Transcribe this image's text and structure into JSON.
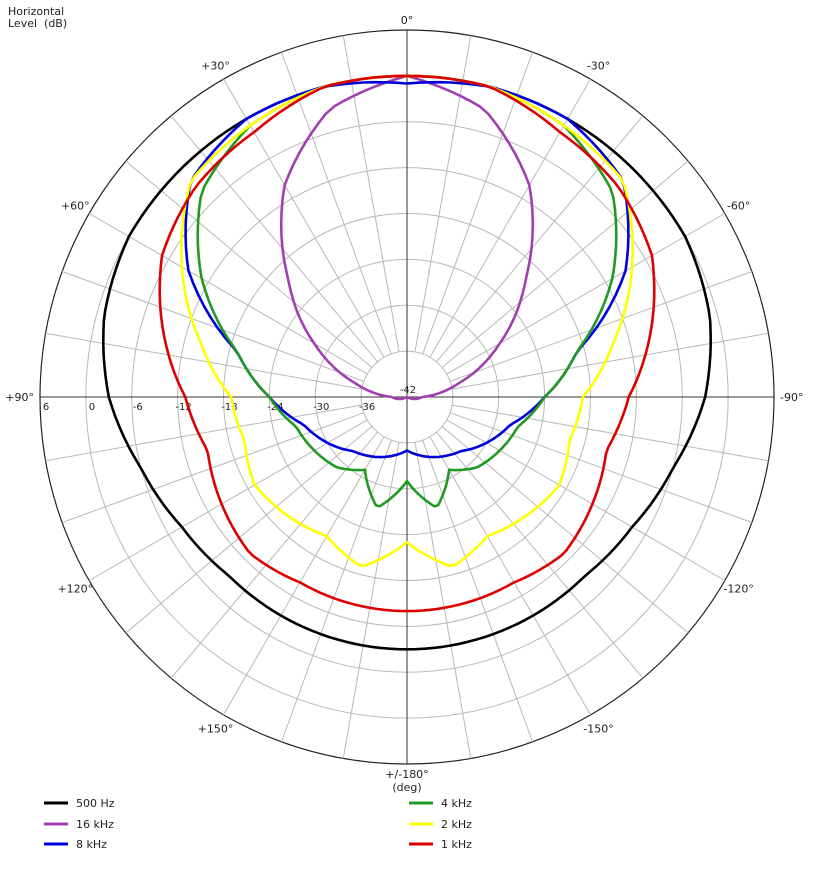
{
  "chart_data": {
    "type": "polar",
    "ylabel": "Horizontal\nLevel  (dB)",
    "ylabel_line1": "Horizontal",
    "ylabel_line2": "Level  (dB)",
    "xlabel": "(deg)",
    "r_range": [
      -42,
      6
    ],
    "r_ticks": [
      -42,
      -36,
      -30,
      -24,
      -18,
      -12,
      -6,
      0,
      6
    ],
    "r_tick_labels": [
      "-42",
      "-36",
      "-30",
      "-24",
      "-18",
      "-12",
      "-6",
      "0",
      "6"
    ],
    "angle_grid_step_deg": 10,
    "angle_labels": [
      {
        "angle": 0,
        "text": "0°"
      },
      {
        "angle": -30,
        "text": "-30°"
      },
      {
        "angle": -60,
        "text": "-60°"
      },
      {
        "angle": -90,
        "text": "-90°"
      },
      {
        "angle": -120,
        "text": "-120°"
      },
      {
        "angle": -150,
        "text": "-150°"
      },
      {
        "angle": 180,
        "text": "+/-180°"
      },
      {
        "angle": 150,
        "text": "+150°"
      },
      {
        "angle": 120,
        "text": "+120°"
      },
      {
        "angle": 90,
        "text": "+90°"
      },
      {
        "angle": 60,
        "text": "+60°"
      },
      {
        "angle": 30,
        "text": "+30°"
      }
    ],
    "grid": true,
    "legend_position": "bottom",
    "angles_deg": [
      0,
      15,
      30,
      45,
      60,
      75,
      90,
      105,
      120,
      135,
      150,
      165,
      180
    ],
    "series": [
      {
        "name": "500 Hz",
        "color": "#000000",
        "values": [
          0,
          0,
          0,
          0,
          0,
          -1,
          -3,
          -6,
          -8,
          -9,
          -9,
          -9,
          -9
        ]
      },
      {
        "name": "16 kHz",
        "color": "#a040b0",
        "values": [
          0,
          -3,
          -10,
          -20,
          -28,
          -35,
          -40,
          -41,
          -42,
          -42,
          -42,
          -42,
          -42
        ]
      },
      {
        "name": "8 kHz",
        "color": "#0000dd",
        "values": [
          -1,
          0,
          0,
          -2,
          -9,
          -19,
          -24,
          -28,
          -30,
          -32,
          -33,
          -34,
          -35
        ]
      },
      {
        "name": "4 kHz",
        "color": "#229922",
        "values": [
          0,
          0,
          -1,
          -4,
          -11,
          -19,
          -24,
          -27,
          -28,
          -29,
          -31,
          -27,
          -31
        ]
      },
      {
        "name": "2 kHz",
        "color": "#ffff00",
        "values": [
          0,
          0,
          -1,
          -2,
          -8,
          -14,
          -19,
          -20,
          -19,
          -20,
          -21,
          -19,
          -23
        ]
      },
      {
        "name": "1 kHz",
        "color": "#dd0000",
        "values": [
          0,
          0,
          -2,
          -3,
          -5,
          -9,
          -13,
          -15,
          -14,
          -13,
          -14,
          -14,
          -14
        ]
      }
    ]
  }
}
